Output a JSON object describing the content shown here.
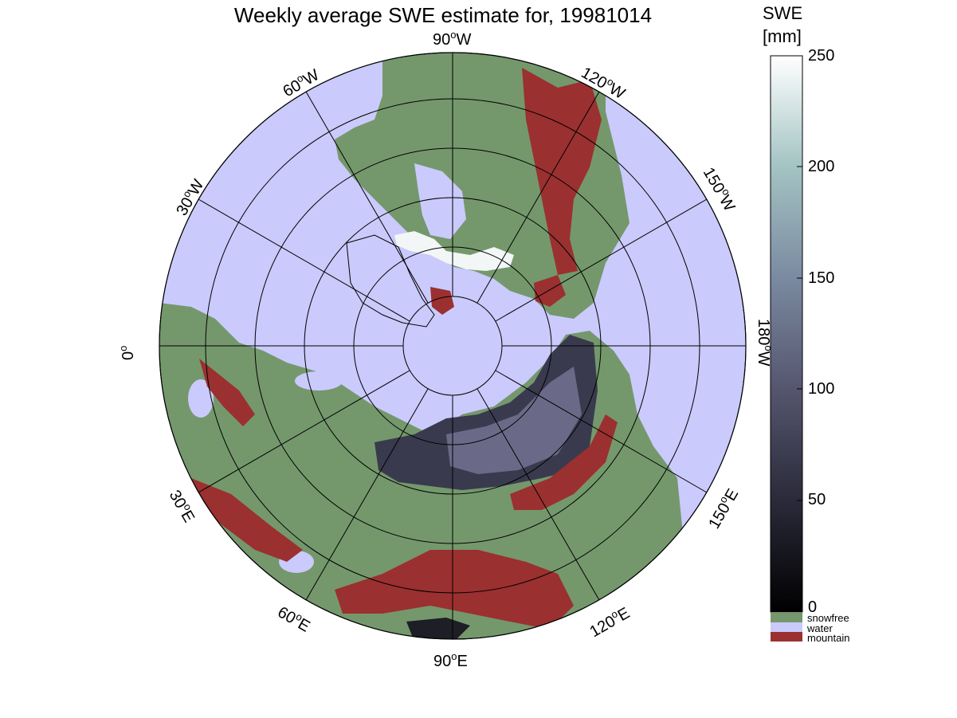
{
  "title": "Weekly average SWE estimate for, 19981014",
  "colorbar": {
    "label_line1": "SWE",
    "label_line2": "[mm]",
    "ticks": [
      "0",
      "50",
      "100",
      "150",
      "200",
      "250"
    ],
    "range": [
      0,
      250
    ],
    "gradient_colors": [
      "#000000",
      "#2a2a3a",
      "#55556e",
      "#7a8aa0",
      "#a3c3c3",
      "#ffffff"
    ]
  },
  "legend": [
    {
      "label": "snowfree",
      "color": "#74986c"
    },
    {
      "label": "water",
      "color": "#cacafc"
    },
    {
      "label": "mountain",
      "color": "#9b3030"
    }
  ],
  "longitude_labels": [
    {
      "deg": "90",
      "dir": "W"
    },
    {
      "deg": "120",
      "dir": "W"
    },
    {
      "deg": "150",
      "dir": "W"
    },
    {
      "deg": "180",
      "dir": "W"
    },
    {
      "deg": "150",
      "dir": "E"
    },
    {
      "deg": "120",
      "dir": "E"
    },
    {
      "deg": "90",
      "dir": "E"
    },
    {
      "deg": "60",
      "dir": "E"
    },
    {
      "deg": "30",
      "dir": "E"
    },
    {
      "deg": "0",
      "dir": ""
    },
    {
      "deg": "30",
      "dir": "W"
    },
    {
      "deg": "60",
      "dir": "W"
    }
  ],
  "colors": {
    "water": "#cacafc",
    "snowfree": "#74986c",
    "mountain": "#9b3030",
    "snow_low": "#3a3a4e",
    "snow_mid": "#6a6a88",
    "grid": "#000000"
  }
}
